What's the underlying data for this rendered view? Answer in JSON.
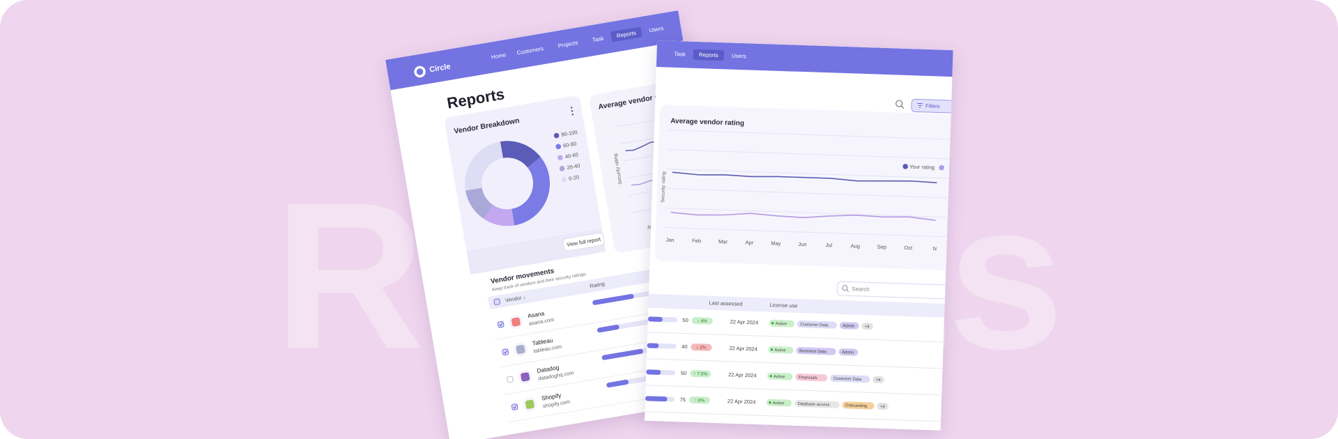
{
  "background_text": "Reports",
  "left_screen": {
    "brand": "Circle",
    "nav": [
      "Home",
      "Customers",
      "Projects",
      "Task",
      "Reports",
      "Users"
    ],
    "active_nav": 4,
    "page_title": "Reports",
    "breakdown": {
      "type": "donut",
      "title": "Vendor Breakdown",
      "series": [
        {
          "name": "80-100",
          "color": "#5b5bb8",
          "value": 17
        },
        {
          "name": "60-80",
          "color": "#7b7be6",
          "value": 33
        },
        {
          "name": "40-60",
          "color": "#c3a8f0",
          "value": 12
        },
        {
          "name": "20-40",
          "color": "#a9a8d8",
          "value": 13
        },
        {
          "name": "0-20",
          "color": "#deddf6",
          "value": 25
        }
      ],
      "button": "View full report"
    },
    "rating_card": {
      "title": "Average vendor rating",
      "y_label": "Security rating",
      "first_month": "Jan"
    },
    "movements": {
      "title": "Vendor movements",
      "subtitle": "Keep track of vendors and their security ratings.",
      "columns": [
        "Vendor ↓",
        "Rating"
      ],
      "rows": [
        {
          "name": "Asana",
          "domain": "asana.com",
          "checked": true,
          "logo": "#f06a6a"
        },
        {
          "name": "Tableau",
          "domain": "tableau.com",
          "checked": true,
          "logo": "#9aa3c4"
        },
        {
          "name": "Datadog",
          "domain": "datadoghq.com",
          "checked": false,
          "logo": "#7b45b5"
        },
        {
          "name": "Shopify",
          "domain": "shopify.com",
          "checked": true,
          "logo": "#8fbf3f"
        }
      ]
    }
  },
  "right_screen": {
    "nav": [
      "Task",
      "Reports",
      "Users"
    ],
    "active_nav": 1,
    "filters": "Filters",
    "rating_chart": {
      "type": "line",
      "title": "Average vendor rating",
      "y_label": "Security rating",
      "categories": [
        "Jan",
        "Feb",
        "Mar",
        "Apr",
        "May",
        "Jun",
        "Jul",
        "Aug",
        "Sep",
        "Oct",
        "N"
      ],
      "ylim": [
        0,
        100
      ],
      "series": [
        {
          "name": "Your rating",
          "color": "#5a5ab0",
          "values": [
            68,
            66,
            67,
            66,
            67,
            67,
            67,
            65,
            66,
            67,
            66
          ]
        },
        {
          "color": "#b39ae0",
          "values": [
            20,
            18,
            19,
            22,
            20,
            19,
            22,
            24,
            23,
            24,
            21
          ]
        }
      ]
    },
    "search": "Search",
    "table": {
      "columns": [
        "Last assessed",
        "License use"
      ],
      "bar_max": 100,
      "rows": [
        {
          "score": 50,
          "change": "↑ 4%",
          "trend": "up",
          "date": "22 Apr 2024",
          "tags": [
            {
              "text": "Active",
              "color": "#c9efc9"
            },
            {
              "text": "Customer Data",
              "color": "#dcdcf7"
            },
            {
              "text": "Admin",
              "color": "#cfc8f0"
            },
            {
              "text": "+4",
              "color": "#e2e2e2"
            }
          ]
        },
        {
          "score": 40,
          "change": "↓ 2%",
          "trend": "down",
          "date": "22 Apr 2024",
          "tags": [
            {
              "text": "Active",
              "color": "#c9efc9"
            },
            {
              "text": "Business Data",
              "color": "#d2c8f2"
            },
            {
              "text": "Admin",
              "color": "#cfc8f0"
            }
          ]
        },
        {
          "score": 50,
          "change": "↑ 7.5%",
          "trend": "up",
          "date": "22 Apr 2024",
          "tags": [
            {
              "text": "Active",
              "color": "#c9efc9"
            },
            {
              "text": "Financials",
              "color": "#f6c9d6"
            },
            {
              "text": "Customer Data",
              "color": "#dcdcf7"
            },
            {
              "text": "+4",
              "color": "#e2e2e2"
            }
          ]
        },
        {
          "score": 75,
          "change": "↑ 6%",
          "trend": "up",
          "date": "22 Apr 2024",
          "tags": [
            {
              "text": "Active",
              "color": "#c9efc9"
            },
            {
              "text": "Database access",
              "color": "#e6e6e6"
            },
            {
              "text": "Onboarding",
              "color": "#f5cf98"
            },
            {
              "text": "+4",
              "color": "#e2e2e2"
            }
          ]
        }
      ]
    }
  }
}
